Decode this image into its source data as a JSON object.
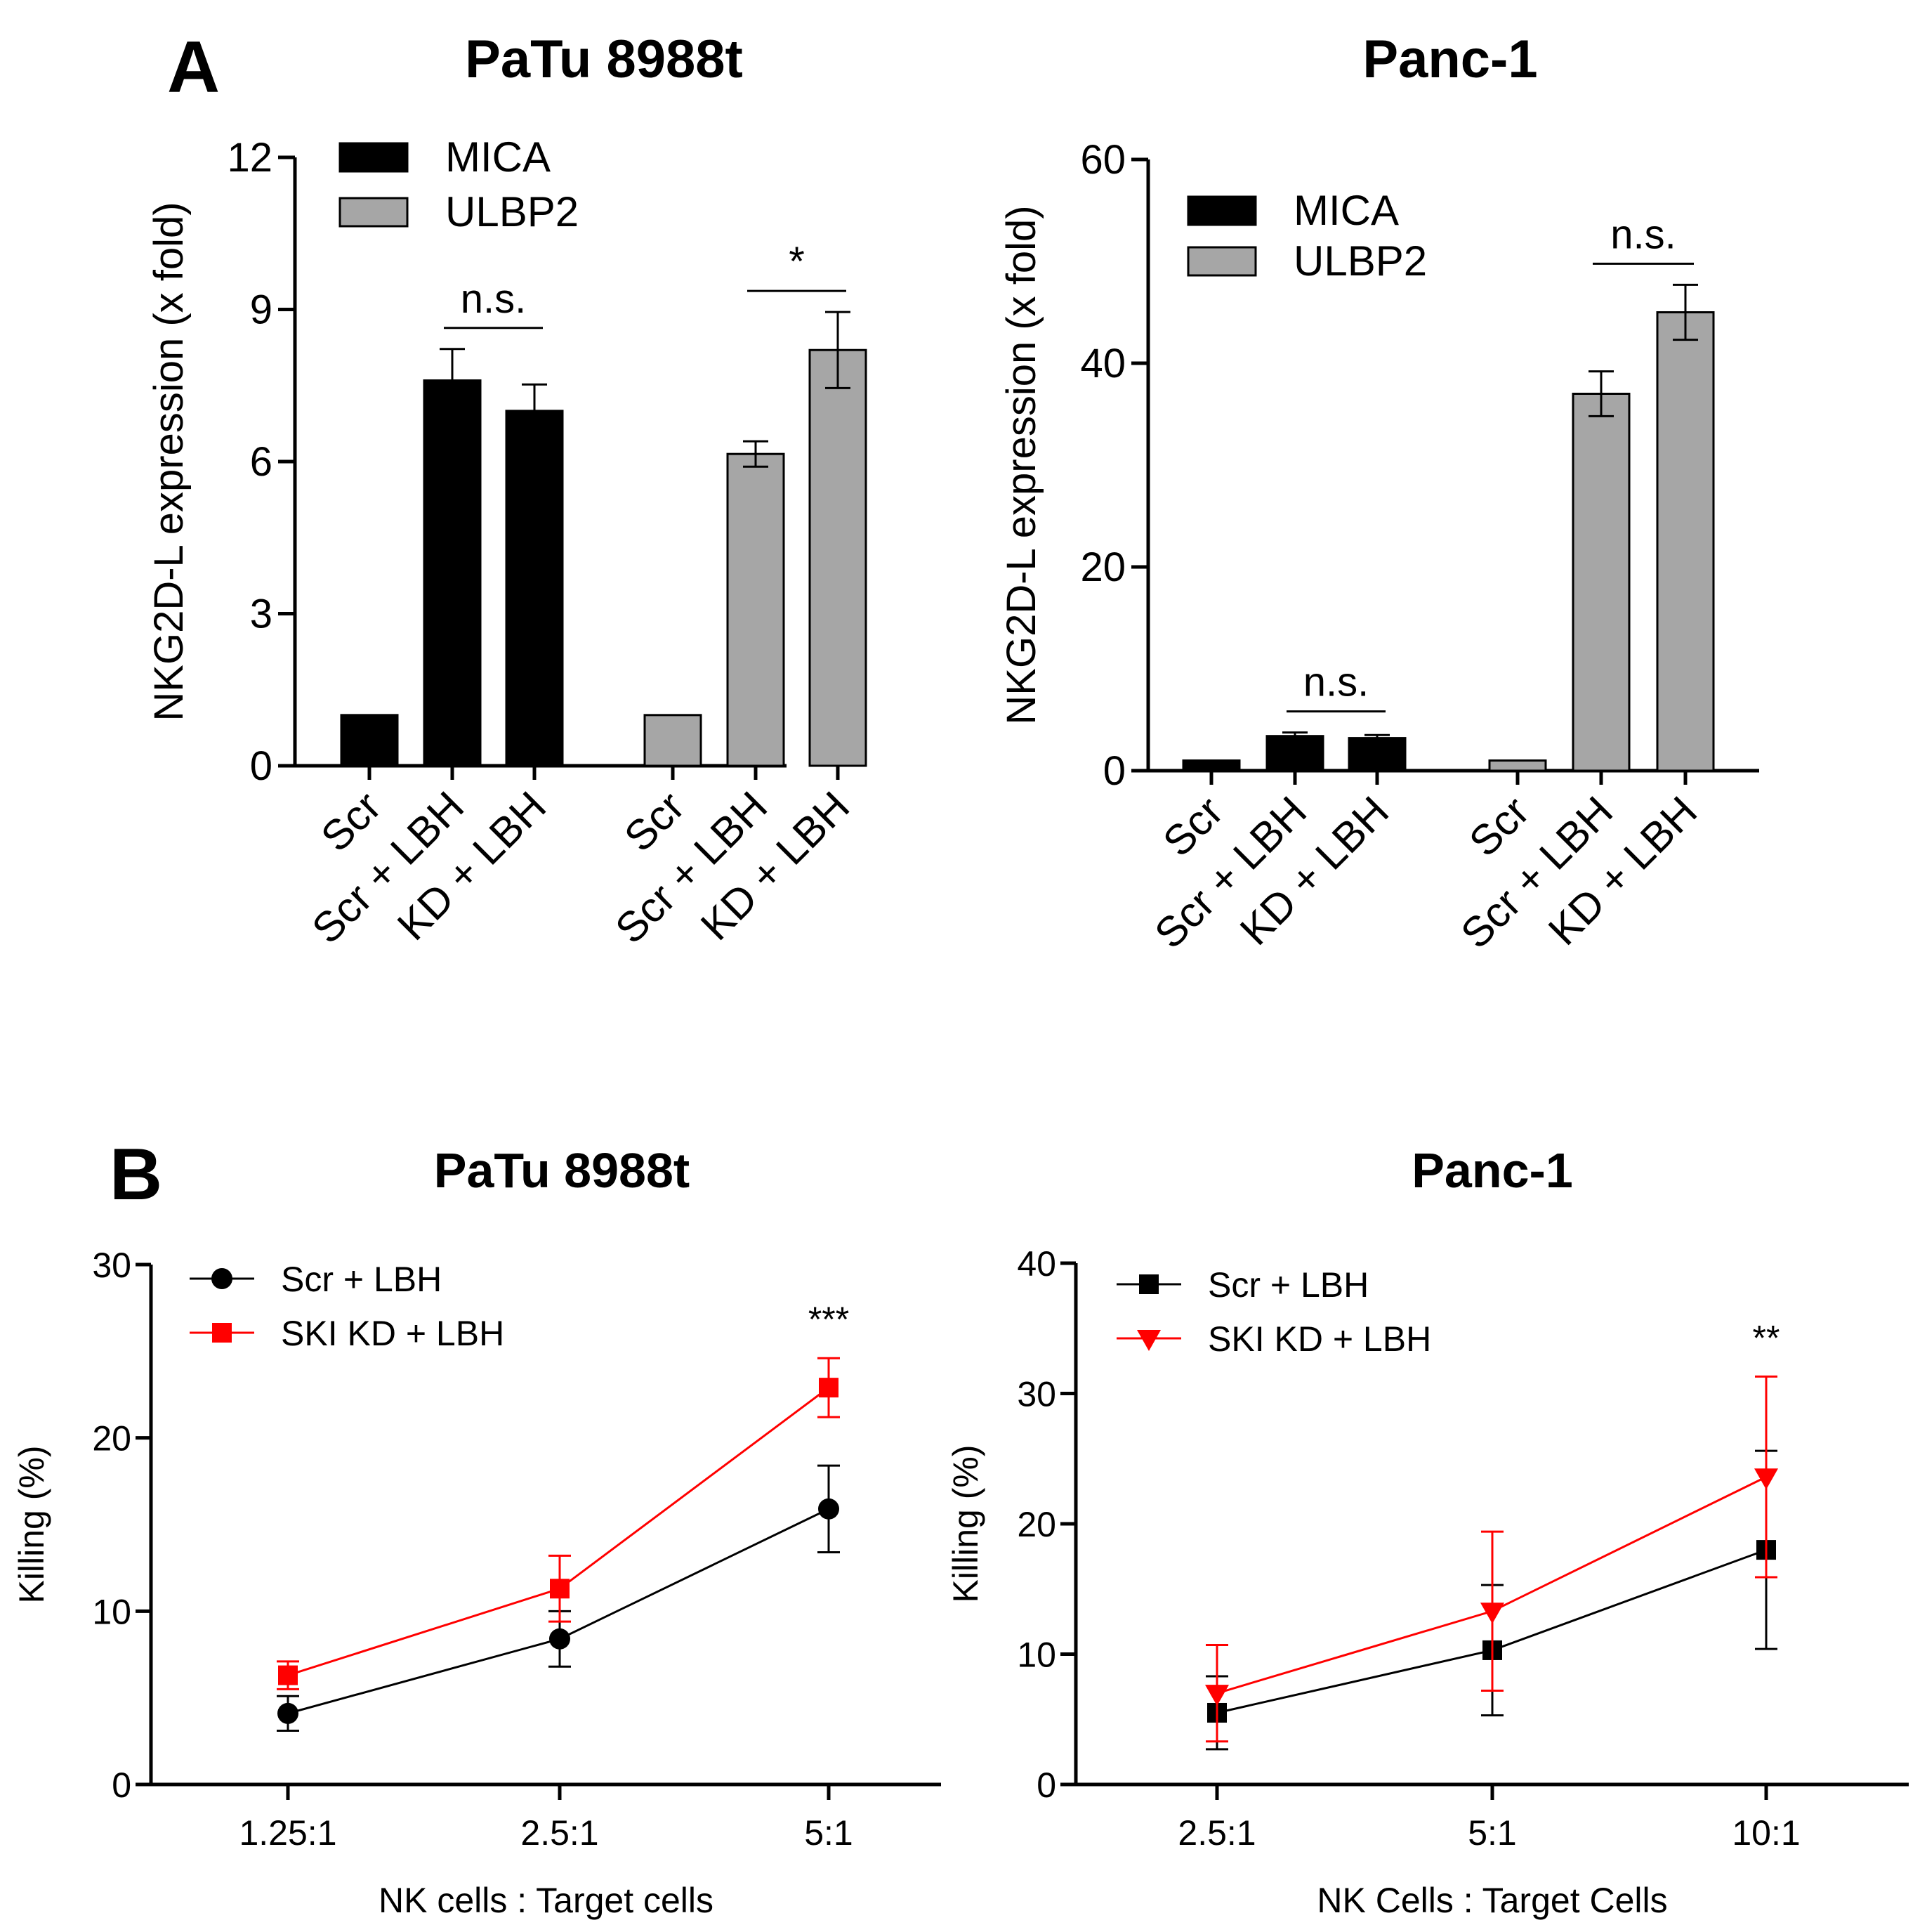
{
  "panels": {
    "a": "A",
    "b": "B"
  },
  "chart_data": [
    {
      "type": "bar",
      "id": "a1",
      "title": "PaTu 8988t",
      "ylabel": "NKG2D-L expression (x fold)",
      "xlabel": "",
      "ylim": [
        0,
        12
      ],
      "yticks": [
        0,
        3,
        6,
        9,
        12
      ],
      "groups": [
        {
          "name": "MICA",
          "categories": [
            "Scr",
            "Scr + LBH",
            "KD + LBH"
          ],
          "values": [
            1.0,
            7.6,
            7.0
          ],
          "errors": [
            0,
            0.62,
            0.52
          ]
        },
        {
          "name": "ULBP2",
          "categories": [
            "Scr",
            "Scr + LBH",
            "KD + LBH"
          ],
          "values": [
            1.0,
            6.15,
            8.2
          ],
          "errors": [
            0,
            0.25,
            0.75
          ]
        }
      ],
      "legend": [
        {
          "name": "MICA",
          "color": "#000000"
        },
        {
          "name": "ULBP2",
          "color": "#a6a6a6"
        }
      ],
      "legend_position": "top-left",
      "annotations": [
        {
          "text": "n.s.",
          "group": 0,
          "from": 1,
          "to": 2
        },
        {
          "text": "*",
          "group": 1,
          "from": 1,
          "to": 2
        }
      ]
    },
    {
      "type": "bar",
      "id": "a2",
      "title": "Panc-1",
      "ylabel": "NKG2D-L expression (x fold)",
      "xlabel": "",
      "ylim": [
        0,
        60
      ],
      "yticks": [
        0,
        20,
        40,
        60
      ],
      "groups": [
        {
          "name": "MICA",
          "categories": [
            "Scr",
            "Scr + LBH",
            "KD + LBH"
          ],
          "values": [
            1.0,
            3.4,
            3.2
          ],
          "errors": [
            0,
            0.35,
            0.3
          ]
        },
        {
          "name": "ULBP2",
          "categories": [
            "Scr",
            "Scr + LBH",
            "KD + LBH"
          ],
          "values": [
            1.0,
            37.0,
            45.0
          ],
          "errors": [
            0,
            2.2,
            2.7
          ]
        }
      ],
      "legend": [
        {
          "name": "MICA",
          "color": "#000000"
        },
        {
          "name": "ULBP2",
          "color": "#a6a6a6"
        }
      ],
      "legend_position": "top-left",
      "annotations": [
        {
          "text": "n.s.",
          "group": 0,
          "from": 1,
          "to": 2
        },
        {
          "text": "n.s.",
          "group": 1,
          "from": 1,
          "to": 2
        }
      ]
    },
    {
      "type": "line",
      "id": "b1",
      "title": "PaTu 8988t",
      "xlabel": "NK cells : Target cells",
      "ylabel": "Killing (%)",
      "categories": [
        "1.25:1",
        "2.5:1",
        "5:1"
      ],
      "ylim": [
        0,
        30
      ],
      "yticks": [
        0,
        10,
        20,
        30
      ],
      "series": [
        {
          "name": "Scr + LBH",
          "color": "#000000",
          "marker": "circle",
          "values": [
            4.1,
            8.4,
            15.9
          ],
          "errors": [
            1.0,
            1.6,
            2.5
          ]
        },
        {
          "name": "SKI KD + LBH",
          "color": "#ff0000",
          "marker": "square",
          "values": [
            6.3,
            11.3,
            22.9
          ],
          "errors": [
            0.8,
            1.9,
            1.7
          ]
        }
      ],
      "legend_position": "top-left",
      "annotations": [
        {
          "text": "***",
          "category": 2
        }
      ]
    },
    {
      "type": "line",
      "id": "b2",
      "title": "Panc-1",
      "xlabel": "NK Cells : Target Cells",
      "ylabel": "Killing (%)",
      "categories": [
        "2.5:1",
        "5:1",
        "10:1"
      ],
      "ylim": [
        0,
        40
      ],
      "yticks": [
        0,
        10,
        20,
        30,
        40
      ],
      "series": [
        {
          "name": "Scr + LBH",
          "color": "#000000",
          "marker": "square",
          "values": [
            5.5,
            10.3,
            18.0
          ],
          "errors": [
            2.8,
            5.0,
            7.6
          ]
        },
        {
          "name": "SKI KD + LBH",
          "color": "#ff0000",
          "marker": "triangle-down",
          "values": [
            7.0,
            13.3,
            23.6
          ],
          "errors": [
            3.7,
            6.1,
            7.7
          ]
        }
      ],
      "legend_position": "top-left",
      "annotations": [
        {
          "text": "**",
          "category": 2
        }
      ]
    }
  ]
}
